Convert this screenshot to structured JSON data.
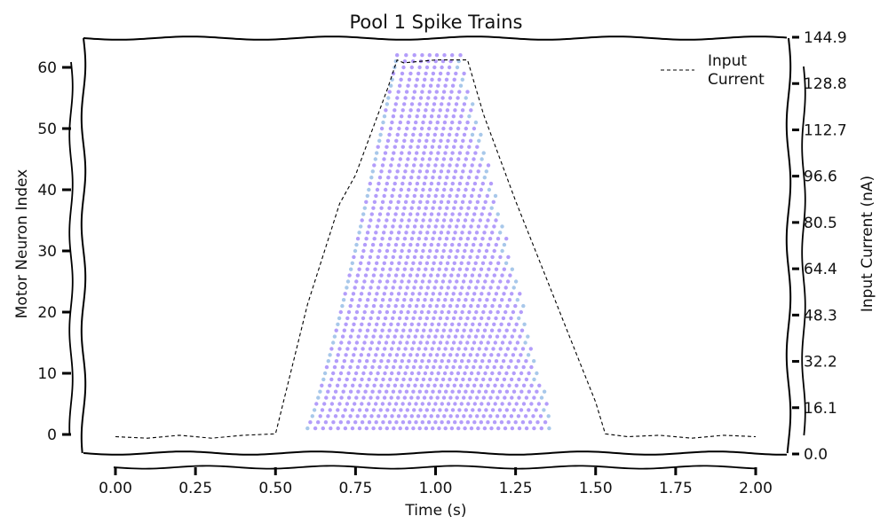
{
  "chart_data": {
    "type": "scatter",
    "title": "Pool 1 Spike Trains",
    "xlabel": "Time (s)",
    "ylabel": "Motor Neuron Index",
    "y2label": "Input Current (nA)",
    "xlim": [
      -0.1,
      2.05
    ],
    "ylim": [
      -3,
      65
    ],
    "y2lim": [
      0,
      144.9
    ],
    "xticks": [
      "0.00",
      "0.25",
      "0.50",
      "0.75",
      "1.00",
      "1.25",
      "1.50",
      "1.75",
      "2.00"
    ],
    "xtick_values": [
      0,
      0.25,
      0.5,
      0.75,
      1.0,
      1.25,
      1.5,
      1.75,
      2.0
    ],
    "yticks": [
      0,
      10,
      20,
      30,
      40,
      50,
      60
    ],
    "y2ticks": [
      "0.0",
      "16.1",
      "32.2",
      "48.3",
      "64.4",
      "80.5",
      "96.6",
      "112.7",
      "128.8",
      "144.9"
    ],
    "y2tick_values": [
      0,
      16.1,
      32.2,
      48.3,
      64.4,
      80.5,
      96.6,
      112.7,
      128.8,
      144.9
    ],
    "grid": false,
    "legend_position": "top-right",
    "series": [
      {
        "name": "Input Current",
        "style": "dashed",
        "color": "#000000",
        "axis": "right",
        "x": [
          0.0,
          0.1,
          0.2,
          0.3,
          0.4,
          0.5,
          0.6,
          0.7,
          0.75,
          0.8,
          0.85,
          0.88,
          0.9,
          1.0,
          1.1,
          1.15,
          1.2,
          1.25,
          1.3,
          1.35,
          1.4,
          1.45,
          1.5,
          1.53,
          1.6,
          1.7,
          1.8,
          1.9,
          2.0
        ],
        "y": [
          6,
          5.5,
          6.5,
          5.5,
          6.5,
          7,
          52,
          87,
          97,
          112,
          127,
          137,
          136,
          137,
          137,
          118,
          103,
          88,
          74,
          60,
          46,
          32,
          18,
          7,
          6,
          6.5,
          5.5,
          6.5,
          6
        ]
      }
    ],
    "spikes": {
      "color": "#b39dfa",
      "accent_color": "#a8c8ea",
      "neurons": 62,
      "description_free": true,
      "onset_start": 0.6,
      "onset_end": 0.88,
      "offset_bottom": 1.37,
      "offset_top": 1.08,
      "peak_time": 1.0
    }
  },
  "colors": {
    "spike": "#b39dfa",
    "spike_accent": "#a8c8ea",
    "line": "#000000"
  }
}
